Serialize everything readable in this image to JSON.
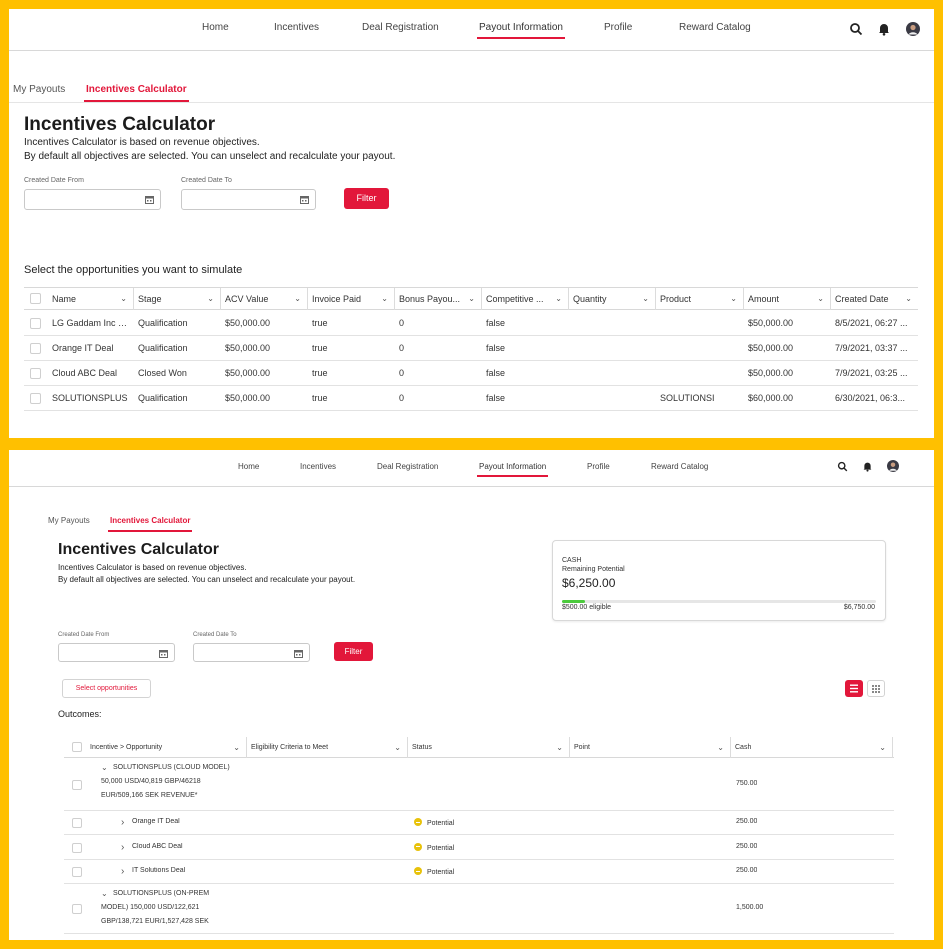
{
  "nav": {
    "items": [
      "Home",
      "Incentives",
      "Deal Registration",
      "Payout Information",
      "Profile",
      "Reward Catalog"
    ],
    "active": "Payout Information",
    "icons": [
      "search-icon",
      "bell-icon",
      "avatar"
    ]
  },
  "subtabs": [
    "My Payouts",
    "Incentives Calculator"
  ],
  "page": {
    "title": "Incentives Calculator",
    "desc1": "Incentives Calculator is based on revenue objectives.",
    "desc2": "By default all objectives are selected. You can unselect and recalculate your payout.",
    "date_from_label": "Created Date From",
    "date_to_label": "Created Date To",
    "filter_label": "Filter"
  },
  "screen1": {
    "section_label": "Select the opportunities you want to simulate",
    "columns": [
      "Name",
      "Stage",
      "ACV Value",
      "Invoice Paid",
      "Bonus Payou...",
      "Competitive ...",
      "Quantity",
      "Product",
      "Amount",
      "Created Date"
    ],
    "rows": [
      [
        "LG Gaddam Inc D...",
        "Qualification",
        "$50,000.00",
        "true",
        "0",
        "false",
        "",
        "",
        "$50,000.00",
        "8/5/2021, 06:27 ..."
      ],
      [
        "Orange IT Deal",
        "Qualification",
        "$50,000.00",
        "true",
        "0",
        "false",
        "",
        "",
        "$50,000.00",
        "7/9/2021, 03:37 ..."
      ],
      [
        "Cloud ABC Deal",
        "Closed Won",
        "$50,000.00",
        "true",
        "0",
        "false",
        "",
        "",
        "$50,000.00",
        "7/9/2021, 03:25 ..."
      ],
      [
        "SOLUTIONSPLUS",
        "Qualification",
        "$50,000.00",
        "true",
        "0",
        "false",
        "",
        "SOLUTIONSI",
        "$60,000.00",
        "6/30/2021, 06:3..."
      ]
    ]
  },
  "screen2": {
    "card": {
      "type": "CASH",
      "subtitle": "Remaining Potential",
      "amount": "$6,250.00",
      "eligible": "$500.00 eligible",
      "total": "$6,750.00",
      "progress_fraction": 0.074,
      "progress_color": "#4bca3c"
    },
    "select_opps_label": "Select opportunities",
    "outcomes_label": "Outcomes:",
    "columns": [
      "Incentive > Opportunity",
      "Eligibility Criteria to Meet",
      "Status",
      "Point",
      "Cash"
    ],
    "rows": [
      {
        "lines": [
          "SOLUTIONSPLUS (CLOUD MODEL)",
          "50,000 USD/40,819 GBP/46218",
          "EUR/509,166 SEK REVENUE*"
        ],
        "status": "",
        "cash": "750.00",
        "parent": true
      },
      {
        "lines": [
          "Orange IT Deal"
        ],
        "status": "Potential",
        "cash": "250.00",
        "parent": false
      },
      {
        "lines": [
          "Cloud ABC Deal"
        ],
        "status": "Potential",
        "cash": "250.00",
        "parent": false
      },
      {
        "lines": [
          "IT Solutions Deal"
        ],
        "status": "Potential",
        "cash": "250.00",
        "parent": false
      },
      {
        "lines": [
          "SOLUTIONSPLUS (ON-PREM",
          "MODEL) 150,000 USD/122,621",
          "GBP/138,721 EUR/1,527,428 SEK"
        ],
        "status": "",
        "cash": "1,500.00",
        "parent": true
      }
    ]
  },
  "colors": {
    "accent": "#e2173a",
    "frame": "#FFC000",
    "status": "#e8c20a"
  }
}
